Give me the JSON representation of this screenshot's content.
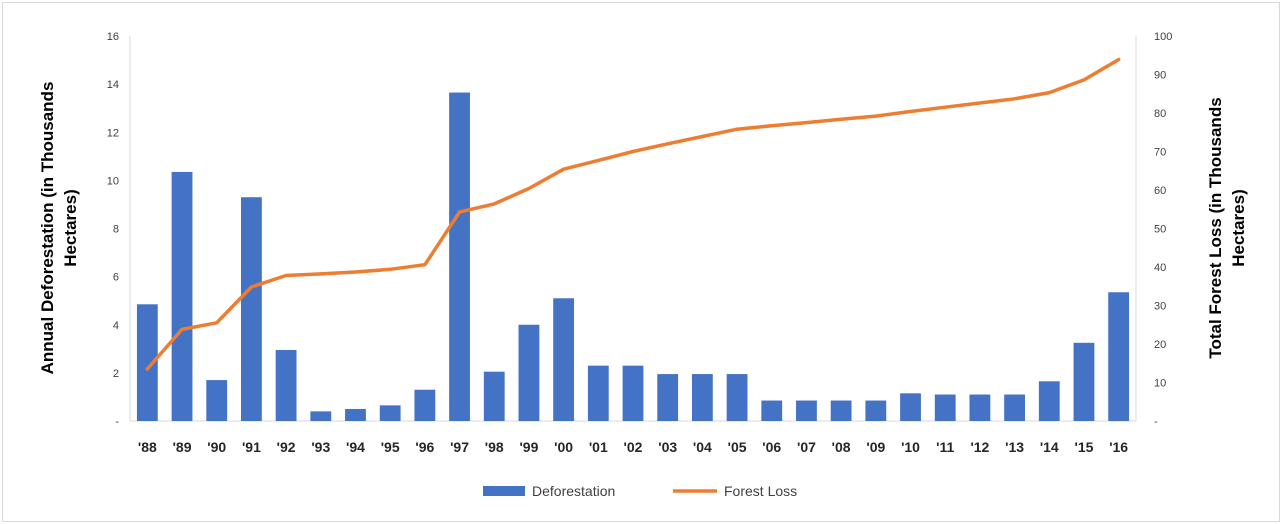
{
  "chart_data": {
    "type": "bar",
    "categories": [
      "'88",
      "'89",
      "'90",
      "'91",
      "'92",
      "'93",
      "'94",
      "'95",
      "'96",
      "'97",
      "'98",
      "'99",
      "'00",
      "'01",
      "'02",
      "'03",
      "'04",
      "'05",
      "'06",
      "'07",
      "'08",
      "'09",
      "'10",
      "'11",
      "'12",
      "'13",
      "'14",
      "'15",
      "'16"
    ],
    "series": [
      {
        "name": "Deforestation",
        "type": "bar",
        "axis": "left",
        "color": "#4472c4",
        "values": [
          4.85,
          10.35,
          1.7,
          9.3,
          2.95,
          0.4,
          0.5,
          0.65,
          1.3,
          13.65,
          2.05,
          4.0,
          5.1,
          2.3,
          2.3,
          1.95,
          1.95,
          1.95,
          0.85,
          0.85,
          0.85,
          0.85,
          1.15,
          1.1,
          1.1,
          1.1,
          1.65,
          3.25,
          5.35
        ]
      },
      {
        "name": "Forest Loss",
        "type": "line",
        "axis": "right",
        "color": "#ed7d31",
        "values": [
          13.5,
          23.8,
          25.5,
          34.8,
          37.8,
          38.2,
          38.7,
          39.4,
          40.6,
          54.3,
          56.4,
          60.4,
          65.4,
          67.7,
          70.0,
          72.0,
          73.9,
          75.8,
          76.7,
          77.5,
          78.4,
          79.2,
          80.4,
          81.5,
          82.6,
          83.7,
          85.3,
          88.6,
          93.9
        ]
      }
    ],
    "ylabel": "Annual Deforestation (in Thousands Hectares)",
    "ylabel_lines": [
      "Annual Deforestation (in Thousands",
      "Hectares)"
    ],
    "y2label": "Total Forest Loss (in Thousands Hectares)",
    "y2label_lines": [
      "Total Forest Loss (in Thousands",
      "Hectares)"
    ],
    "ylim": [
      0,
      16
    ],
    "yticks": [
      0,
      2,
      4,
      6,
      8,
      10,
      12,
      14,
      16
    ],
    "ytick_labels": [
      "-",
      "2",
      "4",
      "6",
      "8",
      "10",
      "12",
      "14",
      "16"
    ],
    "y2lim": [
      0,
      100
    ],
    "y2ticks": [
      0,
      10,
      20,
      30,
      40,
      50,
      60,
      70,
      80,
      90,
      100
    ],
    "y2tick_labels": [
      "-",
      "10",
      "20",
      "30",
      "40",
      "50",
      "60",
      "70",
      "80",
      "90",
      "100"
    ],
    "grid": false,
    "legend_position": "bottom"
  }
}
